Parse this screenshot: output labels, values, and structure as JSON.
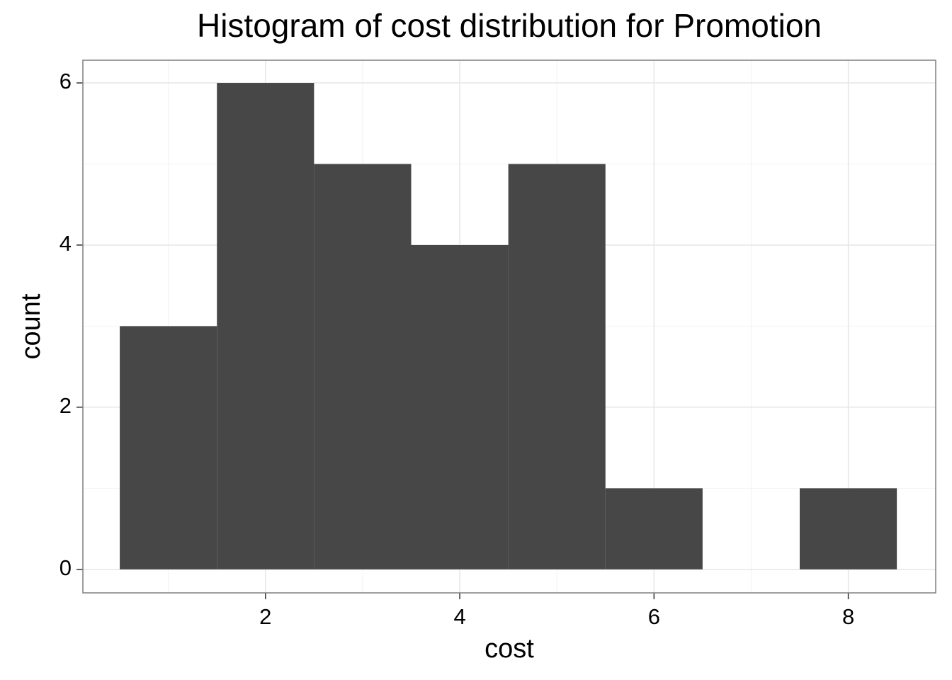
{
  "chart_data": {
    "type": "histogram",
    "title": "Histogram of cost distribution for Promotion",
    "x_label": "cost",
    "y_label": "count",
    "bins": [
      0.5,
      1.5,
      2.5,
      3.5,
      4.5,
      5.5,
      6.5,
      7.5,
      8.5
    ],
    "values": [
      3,
      6,
      5,
      4,
      5,
      1,
      0,
      1
    ],
    "color": "#474747",
    "xlim": [
      0.12,
      8.9
    ],
    "ylim": [
      -0.29,
      6.28
    ],
    "xticks": [
      2,
      4,
      6,
      8
    ],
    "yticks": [
      0,
      2,
      4,
      6
    ],
    "grid": true
  }
}
